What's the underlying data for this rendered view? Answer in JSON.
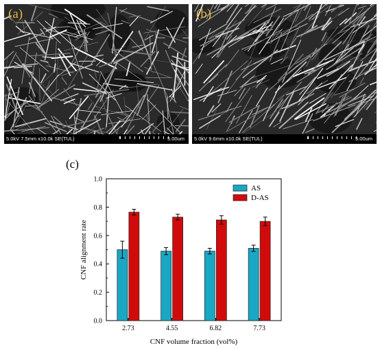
{
  "figure": {
    "panels": [
      {
        "label": "(a)",
        "info": "5.0kV 7.5mm x10.0k SE(TUL)",
        "scale": "5.00um"
      },
      {
        "label": "(b)",
        "info": "5.0kV 9.6mm x10.0k SE(TUL)",
        "scale": "5.00um"
      }
    ],
    "chart_label": "(c)"
  },
  "chart_data": {
    "type": "bar",
    "categories": [
      "2.73",
      "4.55",
      "6.82",
      "7.73"
    ],
    "series": [
      {
        "name": "AS",
        "values": [
          0.5,
          0.49,
          0.49,
          0.51
        ],
        "errors": [
          0.06,
          0.025,
          0.02,
          0.022
        ],
        "color": "#1aa7c4"
      },
      {
        "name": "D-AS",
        "values": [
          0.765,
          0.73,
          0.71,
          0.7
        ],
        "errors": [
          0.02,
          0.02,
          0.03,
          0.03
        ],
        "color": "#d10b0b"
      }
    ],
    "xlabel": "CNF volume fraction (vol%)",
    "ylabel": "CNF alignment rate",
    "ylim": [
      0,
      1.0
    ],
    "yticks": [
      "0.0",
      "0.2",
      "0.4",
      "0.6",
      "0.8",
      "1.0"
    ],
    "legend_position": "top-right",
    "grid": false
  }
}
